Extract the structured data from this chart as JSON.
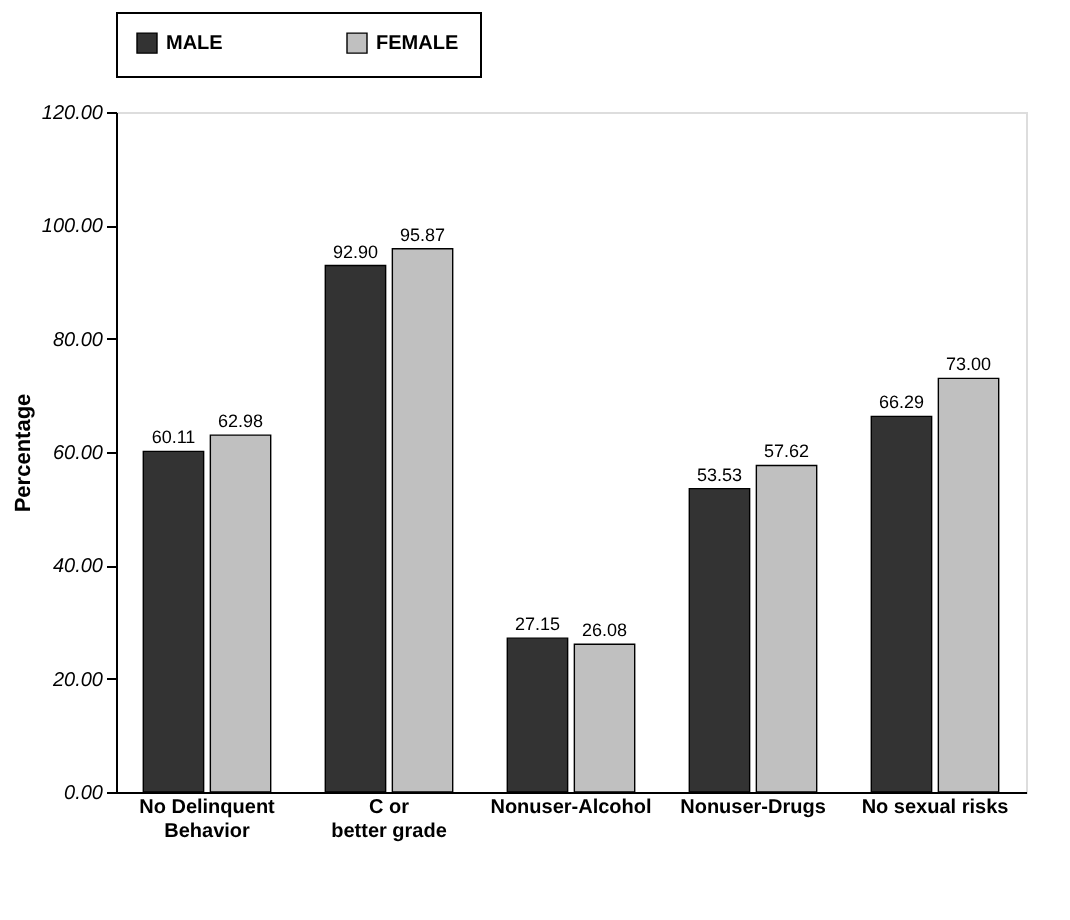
{
  "chart_data": {
    "type": "bar",
    "ylabel": "Percentage",
    "categories": [
      "No Delinquent Behavior",
      "C or better grade",
      "Nonuser-Alcohol",
      "Nonuser-Drugs",
      "No sexual risks"
    ],
    "series": [
      {
        "name": "MALE",
        "color": "#333333",
        "values": [
          60.11,
          92.9,
          27.15,
          53.53,
          66.29
        ]
      },
      {
        "name": "FEMALE",
        "color": "#c0c0c0",
        "values": [
          62.98,
          95.87,
          26.08,
          57.62,
          73.0
        ]
      }
    ],
    "value_labels": [
      [
        "60.11",
        "92.90",
        "27.15",
        "53.53",
        "66.29"
      ],
      [
        "62.98",
        "95.87",
        "26.08",
        "57.62",
        "73.00"
      ]
    ],
    "ylim": [
      0,
      120
    ],
    "yticks": [
      {
        "value": 0,
        "label": "0.00"
      },
      {
        "value": 20,
        "label": "20.00"
      },
      {
        "value": 40,
        "label": "40.00"
      },
      {
        "value": 60,
        "label": "60.00"
      },
      {
        "value": 80,
        "label": "80.00"
      },
      {
        "value": 100,
        "label": "100.00"
      },
      {
        "value": 120,
        "label": "120.00"
      }
    ],
    "grid": false,
    "legend": "top"
  }
}
